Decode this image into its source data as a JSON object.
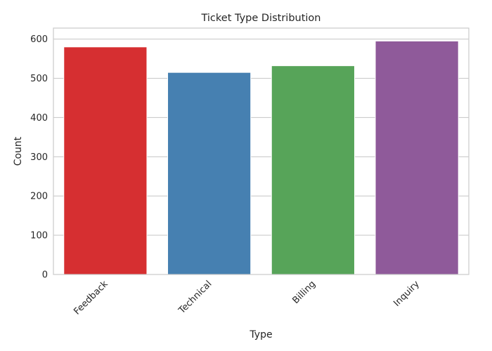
{
  "chart_data": {
    "type": "bar",
    "title": "Ticket Type Distribution",
    "xlabel": "Type",
    "ylabel": "Count",
    "categories": [
      "Feedback",
      "Technical",
      "Billing",
      "Inquiry"
    ],
    "values": [
      580,
      515,
      532,
      595
    ],
    "colors": [
      "#d62f31",
      "#4680b1",
      "#57a459",
      "#8f5a9a"
    ],
    "ylim": [
      0,
      628
    ],
    "yticks": [
      0,
      100,
      200,
      300,
      400,
      500,
      600
    ],
    "grid": true,
    "legend": "none"
  }
}
